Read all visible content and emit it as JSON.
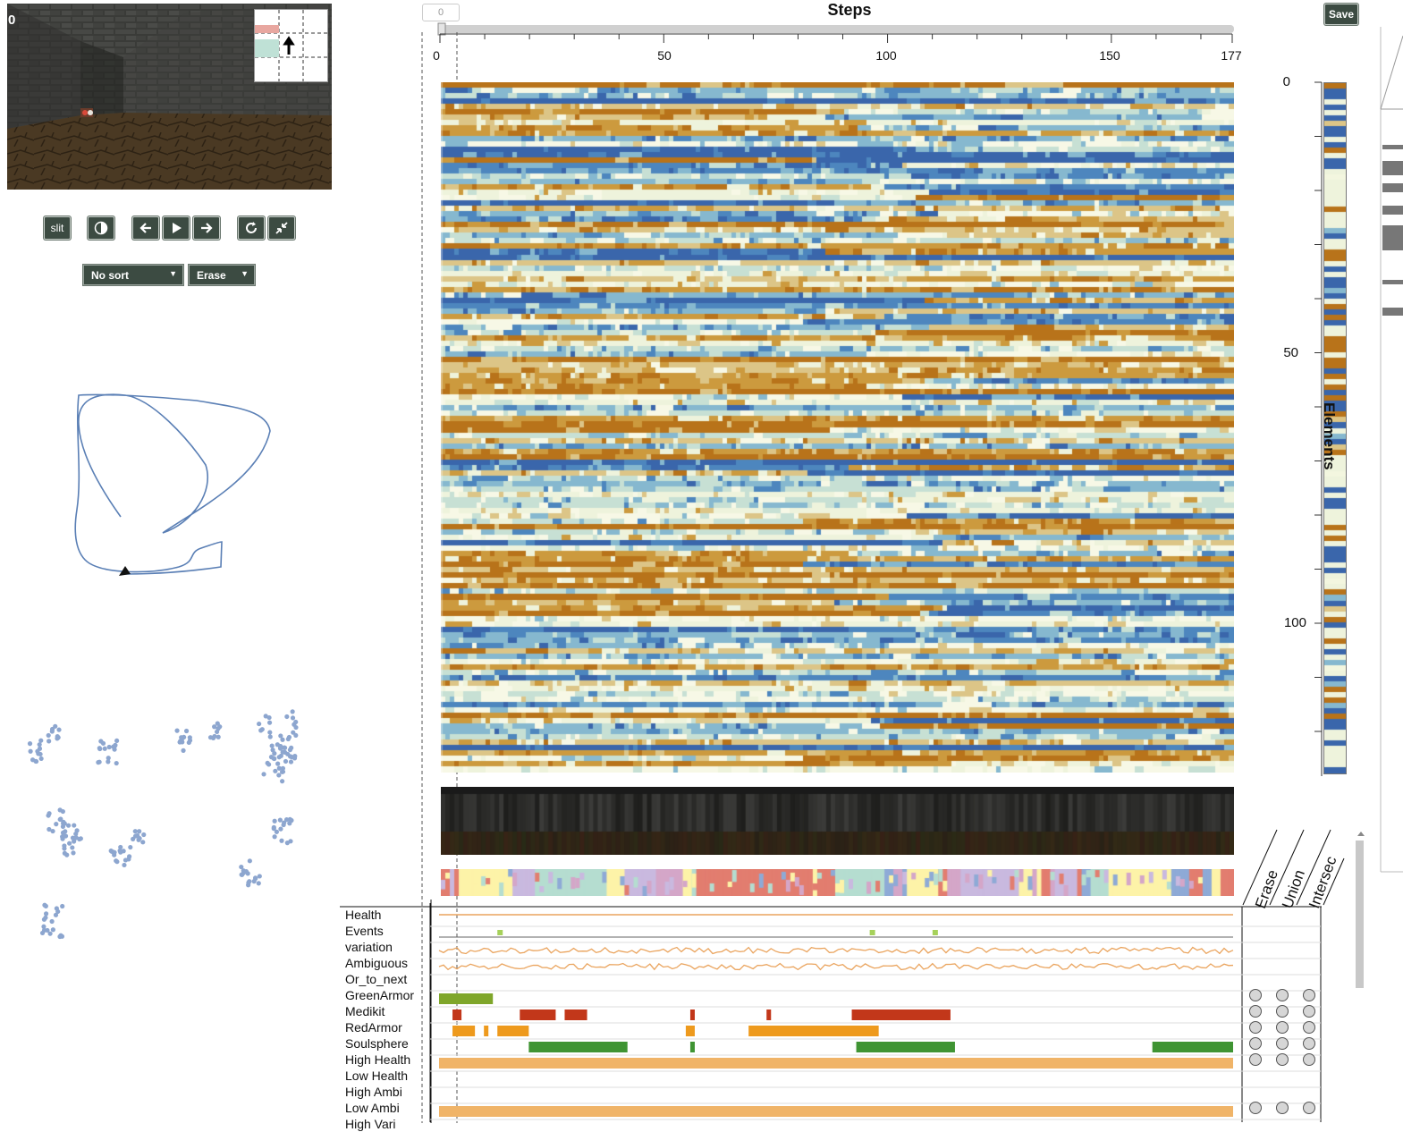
{
  "game_view": {
    "frame_number": "0"
  },
  "controls": {
    "slit_label": "slit",
    "sort_select": "No sort",
    "mode_select": "Erase",
    "save_label": "Save"
  },
  "steps": {
    "title": "Steps",
    "current_step": "0",
    "x_ticks": [
      "0",
      "50",
      "100",
      "150",
      "177"
    ],
    "total": 177
  },
  "elements": {
    "title": "Elements",
    "y_ticks": [
      "0",
      "50",
      "100"
    ],
    "total": 128
  },
  "features": [
    {
      "label": "Health"
    },
    {
      "label": "Events"
    },
    {
      "label": "variation"
    },
    {
      "label": "Ambiguous"
    },
    {
      "label": "Or_to_next"
    },
    {
      "label": "GreenArmor"
    },
    {
      "label": "Medikit"
    },
    {
      "label": "RedArmor"
    },
    {
      "label": "Soulsphere"
    },
    {
      "label": "High Health"
    },
    {
      "label": "Low Health"
    },
    {
      "label": "High Ambi"
    },
    {
      "label": "Low Ambi"
    },
    {
      "label": "High Vari"
    }
  ],
  "set_ops": [
    "Erase",
    "Union",
    "Intersec"
  ],
  "colors": {
    "button_bg": "#3c4b42",
    "trajectory": "#5a7fb5",
    "heat_brown": "#b87a1f",
    "heat_blue": "#3d6fb0",
    "heat_pale": "#eef3dc",
    "green_armor": "#7fa62a",
    "medikit": "#c2371a",
    "red_armor": "#ee9a1d",
    "soulsphere": "#3f9433",
    "bar_orange": "#f0b468"
  },
  "interval_bars": {
    "GreenArmor": [
      [
        0,
        12
      ]
    ],
    "Medikit": [
      [
        3,
        5
      ],
      [
        18,
        26
      ],
      [
        28,
        33
      ],
      [
        56,
        57
      ],
      [
        73,
        74
      ],
      [
        92,
        114
      ]
    ],
    "RedArmor": [
      [
        3,
        8
      ],
      [
        10,
        11
      ],
      [
        13,
        20
      ],
      [
        55,
        57
      ],
      [
        69,
        98
      ]
    ],
    "Soulsphere": [
      [
        20,
        42
      ],
      [
        56,
        57
      ],
      [
        93,
        115
      ],
      [
        159,
        177
      ]
    ],
    "High Health": [
      [
        0,
        177
      ]
    ],
    "Low Ambi": [
      [
        0,
        177
      ]
    ]
  }
}
